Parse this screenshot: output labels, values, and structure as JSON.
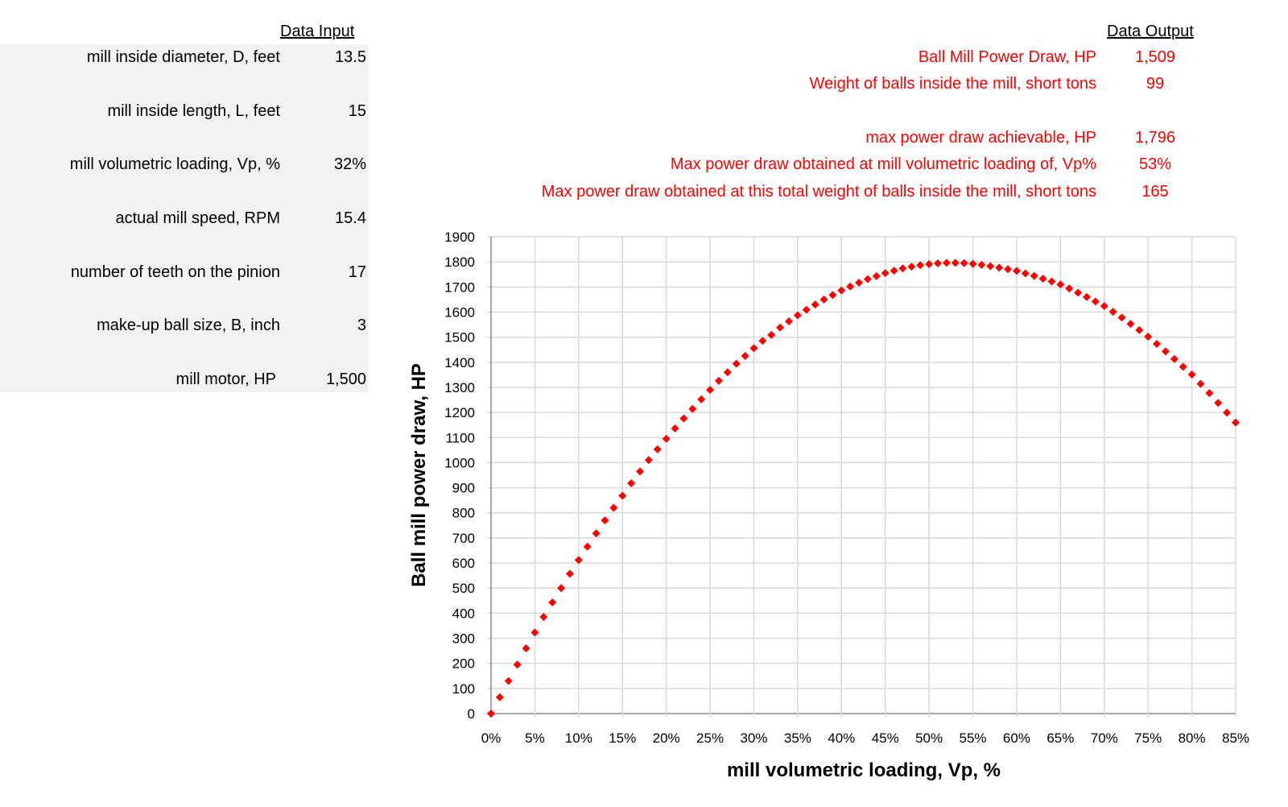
{
  "input": {
    "header": "Data Input",
    "rows": [
      {
        "label": "mill inside diameter, D, feet",
        "value": "13.5"
      },
      {
        "label": "mill inside length, L, feet",
        "value": "15"
      },
      {
        "label": "mill volumetric loading, Vp, %",
        "value": "32%"
      },
      {
        "label": "actual mill speed, RPM",
        "value": "15.4"
      },
      {
        "label": "number of teeth on the pinion",
        "value": "17"
      },
      {
        "label": "make-up ball size, B, inch",
        "value": "3"
      },
      {
        "label": "mill motor, HP",
        "value": "1,500"
      }
    ]
  },
  "output": {
    "header": "Data Output",
    "rows": [
      {
        "label": "Ball Mill Power Draw, HP",
        "value": "1,509"
      },
      {
        "label": "Weight of balls inside the mill, short tons",
        "value": "99"
      },
      {
        "label": "max power draw achievable, HP",
        "value": "1,796"
      },
      {
        "label": "Max power draw obtained at mill volumetric loading of, Vp%",
        "value": "53%"
      },
      {
        "label": "Max power draw obtained at this total weight of balls inside the mill, short tons",
        "value": "165"
      }
    ],
    "color": "#ff0000"
  },
  "chart_data": {
    "type": "scatter",
    "xlabel": "mill volumetric loading, Vp, %",
    "ylabel": "Ball mill power draw, HP",
    "xlim": [
      0,
      85
    ],
    "ylim": [
      0,
      1900
    ],
    "x_ticks": [
      "0%",
      "5%",
      "10%",
      "15%",
      "20%",
      "25%",
      "30%",
      "35%",
      "40%",
      "45%",
      "50%",
      "55%",
      "60%",
      "65%",
      "70%",
      "75%",
      "80%",
      "85%"
    ],
    "y_ticks": [
      "0",
      "100",
      "200",
      "300",
      "400",
      "500",
      "600",
      "700",
      "800",
      "900",
      "1000",
      "1100",
      "1200",
      "1300",
      "1400",
      "1500",
      "1600",
      "1700",
      "1800",
      "1900"
    ],
    "grid": true,
    "marker": "diamond",
    "marker_color": "#ff0000",
    "x": [
      0,
      1,
      2,
      3,
      4,
      5,
      6,
      7,
      8,
      9,
      10,
      11,
      12,
      13,
      14,
      15,
      16,
      17,
      18,
      19,
      20,
      21,
      22,
      23,
      24,
      25,
      26,
      27,
      28,
      29,
      30,
      31,
      32,
      33,
      34,
      35,
      36,
      37,
      38,
      39,
      40,
      41,
      42,
      43,
      44,
      45,
      46,
      47,
      48,
      49,
      50,
      51,
      52,
      53,
      54,
      55,
      56,
      57,
      58,
      59,
      60,
      61,
      62,
      63,
      64,
      65,
      66,
      67,
      68,
      69,
      70,
      71,
      72,
      73,
      74,
      75,
      76,
      77,
      78,
      79,
      80,
      81,
      82,
      83,
      84,
      85
    ],
    "y": [
      0,
      65,
      130,
      195,
      260,
      323,
      385,
      443,
      500,
      557,
      612,
      665,
      718,
      770,
      820,
      868,
      918,
      965,
      1010,
      1053,
      1095,
      1136,
      1176,
      1214,
      1252,
      1290,
      1326,
      1360,
      1394,
      1425,
      1456,
      1485,
      1509,
      1538,
      1563,
      1587,
      1609,
      1630,
      1650,
      1668,
      1686,
      1702,
      1717,
      1731,
      1743,
      1755,
      1765,
      1774,
      1781,
      1787,
      1791,
      1794,
      1796,
      1796,
      1795,
      1792,
      1788,
      1783,
      1777,
      1771,
      1764,
      1754,
      1744,
      1733,
      1722,
      1710,
      1694,
      1677,
      1660,
      1642,
      1624,
      1601,
      1578,
      1553,
      1528,
      1502,
      1473,
      1443,
      1413,
      1382,
      1351,
      1314,
      1277,
      1238,
      1199,
      1160
    ]
  }
}
